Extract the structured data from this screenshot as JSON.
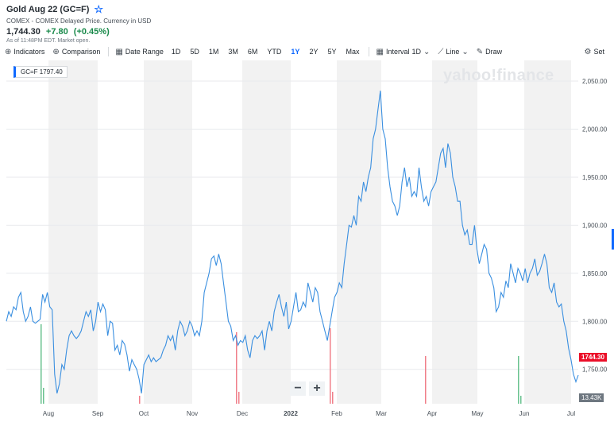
{
  "header": {
    "title": "Gold Aug 22 (GC=F)",
    "subtitle": "COMEX - COMEX Delayed Price. Currency in USD",
    "price": "1,744.30",
    "change": "+7.80",
    "change_pct": "(+0.45%)",
    "asof": "As of 11:48PM EDT. Market open."
  },
  "toolbar": {
    "indicators": "Indicators",
    "comparison": "Comparison",
    "date_range": "Date Range",
    "ranges": [
      "1D",
      "5D",
      "1M",
      "3M",
      "6M",
      "YTD",
      "1Y",
      "2Y",
      "5Y",
      "Max"
    ],
    "active_range": "1Y",
    "interval_label": "Interval",
    "interval_value": "1D",
    "line_label": "Line",
    "draw": "Draw",
    "settings": "Set"
  },
  "legend_box": {
    "symbol": "GC=F",
    "value": "1797.40"
  },
  "watermark": "yahoo!finance",
  "zoom": {
    "minus": "−",
    "plus": "+"
  },
  "price_tag": "1744.30",
  "volume_tag": "13.43K",
  "colors": {
    "line": "#3a8fe0",
    "up_vol": "#69c28f",
    "down_vol": "#f07f8a",
    "band": "#f2f2f2",
    "accent": "#0f69ff"
  },
  "chart_data": {
    "type": "line",
    "title": "",
    "x_labels": [
      "Aug",
      "Sep",
      "Oct",
      "Nov",
      "Dec",
      "2022",
      "Feb",
      "Mar",
      "Apr",
      "May",
      "Jun",
      "Jul"
    ],
    "y_ticks": [
      "1,750.00",
      "1,800.00",
      "1,850.00",
      "1,900.00",
      "1,950.00",
      "2,000.00",
      "2,050.00"
    ],
    "ylim": [
      1720,
      2055
    ],
    "series": [
      {
        "values": [
          1800,
          1810,
          1805,
          1815,
          1812,
          1825,
          1830,
          1810,
          1800,
          1805,
          1815,
          1800,
          1798,
          1800,
          1802,
          1828,
          1820,
          1830,
          1815,
          1812,
          1745,
          1725,
          1735,
          1755,
          1750,
          1770,
          1785,
          1790,
          1785,
          1782,
          1785,
          1790,
          1800,
          1810,
          1805,
          1812,
          1790,
          1800,
          1820,
          1810,
          1818,
          1812,
          1785,
          1800,
          1798,
          1770,
          1775,
          1765,
          1780,
          1776,
          1765,
          1748,
          1760,
          1755,
          1750,
          1740,
          1725,
          1755,
          1760,
          1765,
          1758,
          1762,
          1758,
          1760,
          1762,
          1770,
          1775,
          1785,
          1780,
          1785,
          1770,
          1790,
          1800,
          1795,
          1785,
          1790,
          1800,
          1795,
          1785,
          1790,
          1785,
          1800,
          1830,
          1840,
          1850,
          1865,
          1868,
          1858,
          1870,
          1860,
          1840,
          1820,
          1800,
          1795,
          1780,
          1785,
          1775,
          1780,
          1778,
          1785,
          1770,
          1762,
          1780,
          1785,
          1782,
          1785,
          1790,
          1770,
          1790,
          1800,
          1790,
          1810,
          1820,
          1828,
          1815,
          1805,
          1820,
          1792,
          1800,
          1815,
          1830,
          1810,
          1812,
          1820,
          1815,
          1840,
          1830,
          1820,
          1835,
          1830,
          1810,
          1800,
          1790,
          1780,
          1795,
          1810,
          1825,
          1830,
          1840,
          1835,
          1860,
          1880,
          1900,
          1898,
          1910,
          1900,
          1930,
          1925,
          1945,
          1935,
          1950,
          1960,
          1990,
          2000,
          2020,
          2040,
          2000,
          1990,
          1960,
          1940,
          1925,
          1920,
          1910,
          1920,
          1945,
          1960,
          1940,
          1950,
          1930,
          1935,
          1930,
          1960,
          1940,
          1925,
          1930,
          1920,
          1935,
          1940,
          1945,
          1960,
          1975,
          1980,
          1960,
          1985,
          1975,
          1950,
          1940,
          1925,
          1925,
          1900,
          1890,
          1895,
          1880,
          1880,
          1900,
          1875,
          1860,
          1870,
          1880,
          1875,
          1850,
          1845,
          1835,
          1810,
          1815,
          1830,
          1825,
          1842,
          1835,
          1860,
          1850,
          1840,
          1855,
          1850,
          1842,
          1855,
          1840,
          1850,
          1855,
          1865,
          1848,
          1852,
          1860,
          1870,
          1860,
          1835,
          1830,
          1840,
          1820,
          1815,
          1818,
          1800,
          1790,
          1772,
          1760,
          1745,
          1737,
          1744
        ]
      }
    ]
  }
}
